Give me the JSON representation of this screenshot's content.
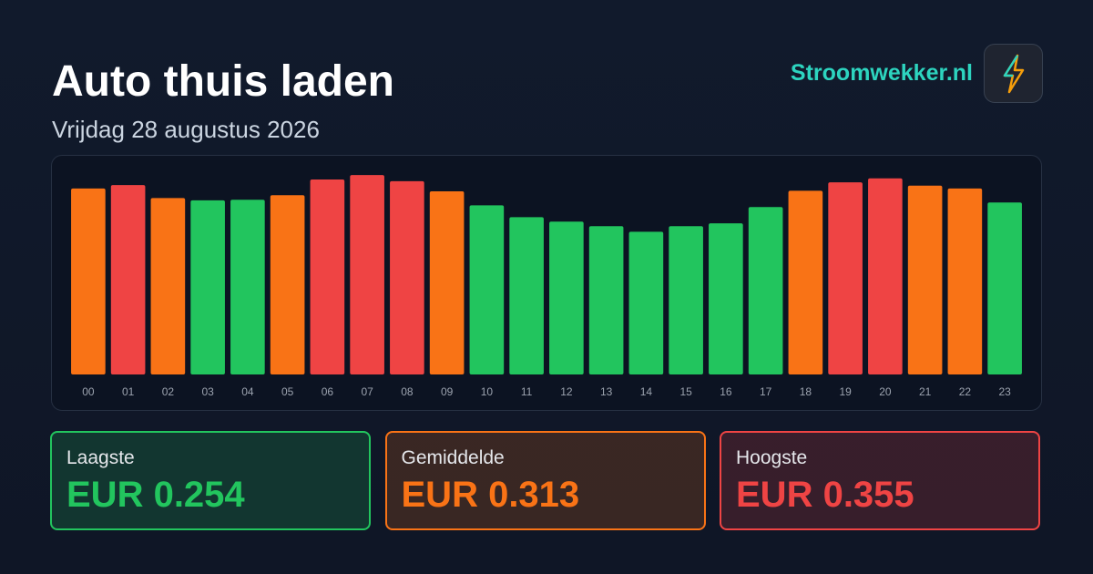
{
  "header": {
    "title": "Auto thuis laden",
    "subtitle": "Vrijdag 28 augustus 2026",
    "brand": "Stroomwekker.nl"
  },
  "chart_data": {
    "type": "bar",
    "categories": [
      "00",
      "01",
      "02",
      "03",
      "04",
      "05",
      "06",
      "07",
      "08",
      "09",
      "10",
      "11",
      "12",
      "13",
      "14",
      "15",
      "16",
      "17",
      "18",
      "19",
      "20",
      "21",
      "22",
      "23"
    ],
    "values": [
      0.331,
      0.337,
      0.314,
      0.31,
      0.311,
      0.319,
      0.347,
      0.355,
      0.344,
      0.326,
      0.301,
      0.28,
      0.272,
      0.264,
      0.254,
      0.264,
      0.269,
      0.298,
      0.327,
      0.342,
      0.349,
      0.336,
      0.331,
      0.306
    ],
    "colors": [
      "#f97316",
      "#ef4444",
      "#f97316",
      "#22c55e",
      "#22c55e",
      "#f97316",
      "#ef4444",
      "#ef4444",
      "#ef4444",
      "#f97316",
      "#22c55e",
      "#22c55e",
      "#22c55e",
      "#22c55e",
      "#22c55e",
      "#22c55e",
      "#22c55e",
      "#22c55e",
      "#f97316",
      "#ef4444",
      "#ef4444",
      "#f97316",
      "#f97316",
      "#22c55e"
    ],
    "ylim": [
      0,
      0.36
    ]
  },
  "cards": [
    {
      "label": "Laagste",
      "value": "EUR 0.254",
      "color": "#22c55e"
    },
    {
      "label": "Gemiddelde",
      "value": "EUR 0.313",
      "color": "#f97316"
    },
    {
      "label": "Hoogste",
      "value": "EUR 0.355",
      "color": "#ef4444"
    }
  ]
}
